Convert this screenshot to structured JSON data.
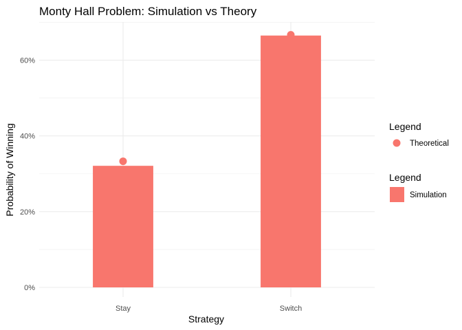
{
  "chart_data": {
    "type": "bar",
    "title": "Monty Hall Problem: Simulation vs Theory",
    "xlabel": "Strategy",
    "ylabel": "Probability of Winning",
    "categories": [
      "Stay",
      "Switch"
    ],
    "ylim": [
      0,
      0.7
    ],
    "yticks": [
      0,
      0.2,
      0.4,
      0.6
    ],
    "ytick_labels": [
      "0%",
      "20%",
      "40%",
      "60%"
    ],
    "grid": true,
    "legend_position": "right",
    "series": [
      {
        "name": "Simulation",
        "kind": "bar",
        "values": [
          0.321,
          0.665
        ],
        "color": "#F8766D"
      },
      {
        "name": "Theoretical",
        "kind": "point",
        "values": [
          0.333,
          0.667
        ],
        "color": "#F8766D"
      }
    ],
    "legend": [
      {
        "title": "Legend",
        "label": "Theoretical",
        "key": "point"
      },
      {
        "title": "Legend",
        "label": "Simulation",
        "key": "bar"
      }
    ]
  }
}
